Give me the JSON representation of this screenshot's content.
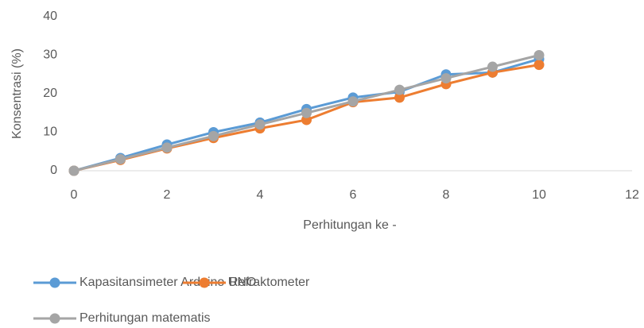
{
  "chart_data": {
    "type": "line",
    "x_label": "Perhitungan ke -",
    "y_label": "Konsentrasi (%)",
    "x": [
      0,
      1,
      2,
      3,
      4,
      5,
      6,
      7,
      8,
      9,
      10
    ],
    "series": [
      {
        "name": "Kapasitansimeter Arduino UNO",
        "color": "#5b9bd5",
        "values": [
          0,
          3.3,
          6.8,
          10,
          12.5,
          16,
          19,
          20.5,
          25,
          25.5,
          29
        ]
      },
      {
        "name": "Refraktometer",
        "color": "#ed7d31",
        "values": [
          0,
          2.8,
          5.8,
          8.5,
          11,
          13.2,
          17.8,
          19,
          22.5,
          25.5,
          27.5
        ]
      },
      {
        "name": "Perhitungan matematis",
        "color": "#a5a5a5",
        "values": [
          0,
          3,
          6,
          9,
          12,
          15,
          18,
          21,
          24,
          27,
          30
        ]
      }
    ],
    "xlim": [
      0,
      12
    ],
    "xticks": [
      0,
      2,
      4,
      6,
      8,
      10,
      12
    ],
    "ylim": [
      0,
      40
    ],
    "yticks": [
      0,
      10,
      20,
      30,
      40
    ]
  }
}
